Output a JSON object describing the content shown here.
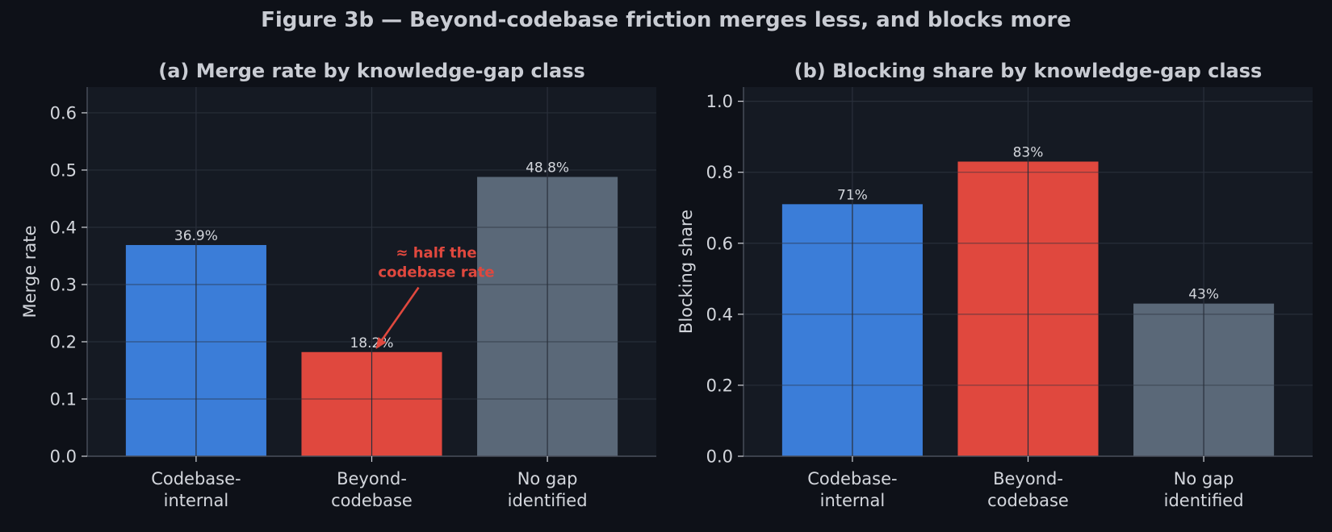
{
  "figure": {
    "title": "Figure 3b — Beyond-codebase friction merges less, and blocks more"
  },
  "colors": {
    "background": "#0e1118",
    "panel": "#151a23",
    "grid": "#252b36",
    "axis": "#4a505c",
    "text": "#d3d6dc",
    "title_text": "#c9ccd3",
    "codebase_internal": "#3b7dd8",
    "beyond_codebase": "#e0483e",
    "no_gap": "#5a6878",
    "annotation": "#e0483e"
  },
  "chart_data": [
    {
      "type": "bar",
      "title": "(a) Merge rate by knowledge-gap class",
      "xlabel": "",
      "ylabel": "Merge rate",
      "categories": [
        [
          "Codebase-",
          "internal"
        ],
        [
          "Beyond-",
          "codebase"
        ],
        [
          "No gap",
          "identified"
        ]
      ],
      "values": [
        0.369,
        0.182,
        0.488
      ],
      "value_labels": [
        "36.9%",
        "18.2%",
        "48.8%"
      ],
      "ylim": [
        0,
        0.645
      ],
      "yticks": [
        0.0,
        0.1,
        0.2,
        0.3,
        0.4,
        0.5,
        0.6
      ],
      "ytick_labels": [
        "0.0",
        "0.1",
        "0.2",
        "0.3",
        "0.4",
        "0.5",
        "0.6"
      ],
      "grid": true,
      "annotation": {
        "lines": [
          "≈ half the",
          "codebase rate"
        ],
        "target_category": 1,
        "target_value": 0.19,
        "text_value": 0.33
      }
    },
    {
      "type": "bar",
      "title": "(b) Blocking share by knowledge-gap class",
      "xlabel": "",
      "ylabel": "Blocking share",
      "categories": [
        [
          "Codebase-",
          "internal"
        ],
        [
          "Beyond-",
          "codebase"
        ],
        [
          "No gap",
          "identified"
        ]
      ],
      "values": [
        0.71,
        0.83,
        0.43
      ],
      "value_labels": [
        "71%",
        "83%",
        "43%"
      ],
      "ylim": [
        0,
        1.04
      ],
      "yticks": [
        0.0,
        0.2,
        0.4,
        0.6,
        0.8,
        1.0
      ],
      "ytick_labels": [
        "0.0",
        "0.2",
        "0.4",
        "0.6",
        "0.8",
        "1.0"
      ],
      "grid": true
    }
  ]
}
